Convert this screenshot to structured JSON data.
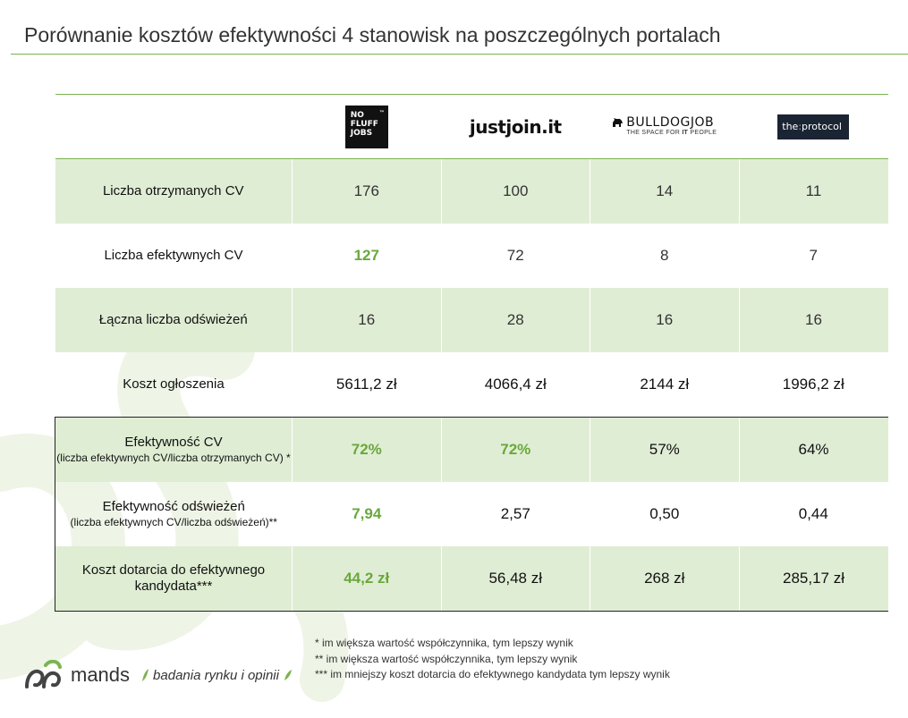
{
  "title": "Porównanie kosztów efektywności 4 stanowisk na poszczególnych portalach",
  "colors": {
    "accent": "#7cb450",
    "shade": "#ddebd1",
    "good": "#6aa83b"
  },
  "portals": [
    {
      "name": "NO FLUFF JOBS",
      "logo_lines": [
        "NO",
        "FLUFF",
        "JOBS"
      ],
      "tm": "™"
    },
    {
      "name": "justjoin.it"
    },
    {
      "name": "BULLDOGJOB",
      "tagline_pre": "THE SPACE FOR ",
      "tagline_em": "IT",
      "tagline_post": " PEOPLE"
    },
    {
      "name_pre": "the",
      "name_sep": ":",
      "name_post": "protocol"
    }
  ],
  "rows": [
    {
      "label": "Liczba otrzymanych CV",
      "sub": "",
      "values": [
        "176",
        "100",
        "14",
        "11"
      ],
      "highlight": [
        false,
        false,
        false,
        false
      ]
    },
    {
      "label": "Liczba efektywnych CV",
      "sub": "",
      "values": [
        "127",
        "72",
        "8",
        "7"
      ],
      "highlight": [
        true,
        false,
        false,
        false
      ]
    },
    {
      "label": "Łączna liczba odświeżeń",
      "sub": "",
      "values": [
        "16",
        "28",
        "16",
        "16"
      ],
      "highlight": [
        false,
        false,
        false,
        false
      ]
    },
    {
      "label": "Koszt ogłoszenia",
      "sub": "",
      "values": [
        "5611,2 zł",
        "4066,4 zł",
        "2144 zł",
        "1996,2 zł"
      ],
      "highlight": [
        false,
        false,
        false,
        false
      ]
    },
    {
      "label": "Efektywność CV",
      "sub": "(liczba efektywnych CV/liczba otrzymanych CV) *",
      "values": [
        "72%",
        "72%",
        "57%",
        "64%"
      ],
      "highlight": [
        true,
        true,
        false,
        false
      ]
    },
    {
      "label": "Efektywność odświeżeń",
      "sub": "(liczba efektywnych  CV/liczba odświeżeń)**",
      "values": [
        "7,94",
        "2,57",
        "0,50",
        "0,44"
      ],
      "highlight": [
        true,
        false,
        false,
        false
      ]
    },
    {
      "label": "Koszt dotarcia do efektywnego kandydata***",
      "sub": "",
      "values": [
        "44,2 zł",
        "56,48 zł",
        "268 zł",
        "285,17 zł"
      ],
      "highlight": [
        true,
        false,
        false,
        false
      ]
    }
  ],
  "notes": [
    "* im większa wartość współczynnika, tym lepszy wynik",
    "** im większa wartość współczynnika, tym lepszy wynik",
    "*** im mniejszy koszt dotarcia do efektywnego kandydata tym lepszy wynik"
  ],
  "brand": {
    "name": "mands",
    "tagline": "badania rynku i opinii"
  }
}
